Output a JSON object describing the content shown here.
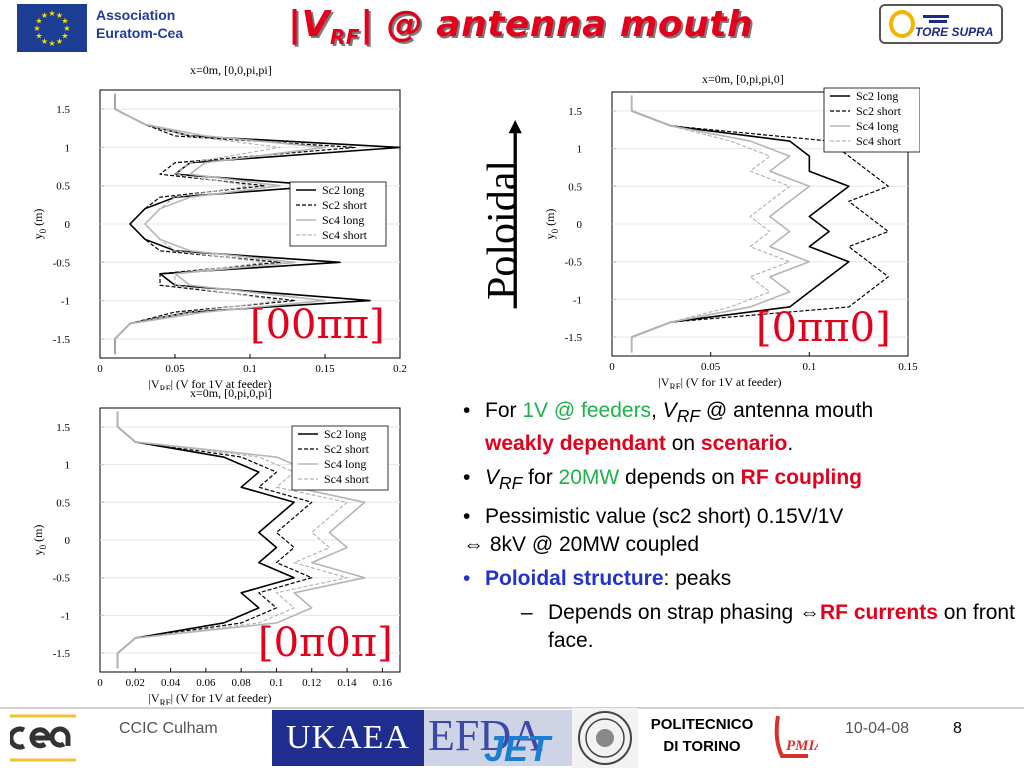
{
  "header": {
    "association_line1": "Association",
    "association_line2": "Euratom-Cea",
    "title_pre": "|V",
    "title_sub": "RF",
    "title_post": "| @ antenna mouth",
    "logo_text": "TORE SUPRA"
  },
  "plots": [
    {
      "id": "plot1",
      "title": "x=0m, [0,0,pi,pi]",
      "phase_label": "[00ππ]",
      "x_ticks": [
        "0",
        "0.05",
        "0.1",
        "0.15",
        "0.2"
      ],
      "y_ticks": [
        "1.5",
        "1",
        "0.5",
        "0",
        "-0.5",
        "-1",
        "-1.5"
      ],
      "xlabel_pre": "|V",
      "xlabel_sub": "RF",
      "xlabel_post": "| (V for 1V at feeder)",
      "ylabel_pre": "y",
      "ylabel_sub": "0",
      "ylabel_post": " (m)",
      "legend": [
        "Sc2 long",
        "Sc2 short",
        "Sc4 long",
        "Sc4 short"
      ]
    },
    {
      "id": "plot2",
      "title": "x=0m, [0,pi,pi,0]",
      "phase_label": "[0ππ0]",
      "x_ticks": [
        "0",
        "0.05",
        "0.1",
        "0.15"
      ],
      "y_ticks": [
        "1.5",
        "1",
        "0.5",
        "0",
        "-0.5",
        "-1",
        "-1.5"
      ],
      "xlabel_pre": "|V",
      "xlabel_sub": "RF",
      "xlabel_post": "| (V for 1V at feeder)",
      "ylabel_pre": "y",
      "ylabel_sub": "0",
      "ylabel_post": " (m)",
      "legend": [
        "Sc2 long",
        "Sc2 short",
        "Sc4 long",
        "Sc4 short"
      ]
    },
    {
      "id": "plot3",
      "title": "x=0m, [0,pi,0,pi]",
      "phase_label": "[0π0π]",
      "x_ticks": [
        "0",
        "0.02",
        "0.04",
        "0.06",
        "0.08",
        "0.1",
        "0.12",
        "0.14",
        "0.16"
      ],
      "y_ticks": [
        "1.5",
        "1",
        "0.5",
        "0",
        "-0.5",
        "-1",
        "-1.5"
      ],
      "xlabel_pre": "|V",
      "xlabel_sub": "RF",
      "xlabel_post": "| (V for 1V at feeder)",
      "ylabel_pre": "y",
      "ylabel_sub": "0",
      "ylabel_post": " (m)",
      "legend": [
        "Sc2 long",
        "Sc2 short",
        "Sc4 long",
        "Sc4 short"
      ]
    }
  ],
  "chart_data": [
    {
      "type": "line",
      "title": "x=0m, [0,0,pi,pi]",
      "xlabel": "|VRF| (V for 1V at feeder)",
      "ylabel": "y0 (m)",
      "xlim": [
        0,
        0.2
      ],
      "ylim": [
        -1.75,
        1.75
      ],
      "legend_position": "right-middle",
      "series": [
        {
          "name": "Sc2 long",
          "y": [
            -1.7,
            -1.5,
            -1.3,
            -1.15,
            -1.0,
            -0.8,
            -0.65,
            -0.5,
            -0.35,
            -0.2,
            0.0,
            0.2,
            0.35,
            0.5,
            0.65,
            0.8,
            1.0,
            1.15,
            1.3,
            1.5,
            1.7
          ],
          "x": [
            0.01,
            0.01,
            0.02,
            0.06,
            0.18,
            0.05,
            0.04,
            0.16,
            0.05,
            0.03,
            0.02,
            0.03,
            0.05,
            0.15,
            0.05,
            0.06,
            0.2,
            0.06,
            0.03,
            0.01,
            0.01
          ]
        },
        {
          "name": "Sc2 short",
          "y": [
            -1.7,
            -1.5,
            -1.3,
            -1.15,
            -1.0,
            -0.8,
            -0.65,
            -0.5,
            -0.35,
            -0.2,
            0.0,
            0.2,
            0.35,
            0.5,
            0.65,
            0.8,
            1.0,
            1.15,
            1.3,
            1.5,
            1.7
          ],
          "x": [
            0.01,
            0.01,
            0.02,
            0.05,
            0.13,
            0.04,
            0.04,
            0.12,
            0.04,
            0.03,
            0.02,
            0.03,
            0.04,
            0.11,
            0.04,
            0.05,
            0.17,
            0.05,
            0.03,
            0.01,
            0.01
          ]
        },
        {
          "name": "Sc4 long",
          "y": [
            -1.7,
            -1.5,
            -1.3,
            -1.15,
            -1.0,
            -0.8,
            -0.65,
            -0.5,
            -0.35,
            -0.2,
            0.0,
            0.2,
            0.35,
            0.5,
            0.65,
            0.8,
            1.0,
            1.15,
            1.3,
            1.5,
            1.7
          ],
          "x": [
            0.01,
            0.01,
            0.02,
            0.07,
            0.15,
            0.06,
            0.05,
            0.13,
            0.06,
            0.04,
            0.03,
            0.04,
            0.06,
            0.12,
            0.06,
            0.07,
            0.15,
            0.07,
            0.03,
            0.01,
            0.01
          ]
        },
        {
          "name": "Sc4 short",
          "y": [
            -1.7,
            -1.5,
            -1.3,
            -1.15,
            -1.0,
            -0.8,
            -0.65,
            -0.5,
            -0.35,
            -0.2,
            0.0,
            0.2,
            0.35,
            0.5,
            0.65,
            0.8,
            1.0,
            1.15,
            1.3,
            1.5,
            1.7
          ],
          "x": [
            0.01,
            0.01,
            0.02,
            0.06,
            0.12,
            0.05,
            0.05,
            0.11,
            0.05,
            0.04,
            0.03,
            0.04,
            0.05,
            0.1,
            0.05,
            0.06,
            0.12,
            0.06,
            0.03,
            0.01,
            0.01
          ]
        }
      ]
    },
    {
      "type": "line",
      "title": "x=0m, [0,pi,pi,0]",
      "xlabel": "|VRF| (V for 1V at feeder)",
      "ylabel": "y0 (m)",
      "xlim": [
        0,
        0.15
      ],
      "ylim": [
        -1.75,
        1.75
      ],
      "legend_position": "top-right",
      "series": [
        {
          "name": "Sc2 long",
          "y": [
            -1.7,
            -1.5,
            -1.3,
            -1.1,
            -0.9,
            -0.7,
            -0.5,
            -0.3,
            -0.1,
            0.1,
            0.3,
            0.5,
            0.7,
            0.9,
            1.1,
            1.3,
            1.5,
            1.7
          ],
          "x": [
            0.01,
            0.01,
            0.03,
            0.09,
            0.1,
            0.11,
            0.12,
            0.1,
            0.11,
            0.1,
            0.11,
            0.12,
            0.1,
            0.1,
            0.09,
            0.03,
            0.01,
            0.01
          ]
        },
        {
          "name": "Sc2 short",
          "y": [
            -1.7,
            -1.5,
            -1.3,
            -1.1,
            -0.9,
            -0.7,
            -0.5,
            -0.3,
            -0.1,
            0.1,
            0.3,
            0.5,
            0.7,
            0.9,
            1.1,
            1.3,
            1.5,
            1.7
          ],
          "x": [
            0.01,
            0.01,
            0.03,
            0.12,
            0.13,
            0.14,
            0.13,
            0.12,
            0.14,
            0.13,
            0.12,
            0.14,
            0.13,
            0.12,
            0.11,
            0.03,
            0.01,
            0.01
          ]
        },
        {
          "name": "Sc4 long",
          "y": [
            -1.7,
            -1.5,
            -1.3,
            -1.1,
            -0.9,
            -0.7,
            -0.5,
            -0.3,
            -0.1,
            0.1,
            0.3,
            0.5,
            0.7,
            0.9,
            1.1,
            1.3,
            1.5,
            1.7
          ],
          "x": [
            0.01,
            0.01,
            0.03,
            0.07,
            0.09,
            0.08,
            0.1,
            0.08,
            0.09,
            0.08,
            0.09,
            0.1,
            0.08,
            0.09,
            0.07,
            0.03,
            0.01,
            0.01
          ]
        },
        {
          "name": "Sc4 short",
          "y": [
            -1.7,
            -1.5,
            -1.3,
            -1.1,
            -0.9,
            -0.7,
            -0.5,
            -0.3,
            -0.1,
            0.1,
            0.3,
            0.5,
            0.7,
            0.9,
            1.1,
            1.3,
            1.5,
            1.7
          ],
          "x": [
            0.01,
            0.01,
            0.03,
            0.06,
            0.08,
            0.07,
            0.09,
            0.07,
            0.08,
            0.07,
            0.08,
            0.09,
            0.07,
            0.08,
            0.06,
            0.03,
            0.01,
            0.01
          ]
        }
      ]
    },
    {
      "type": "line",
      "title": "x=0m, [0,pi,0,pi]",
      "xlabel": "|VRF| (V for 1V at feeder)",
      "ylabel": "y0 (m)",
      "xlim": [
        0,
        0.17
      ],
      "ylim": [
        -1.75,
        1.75
      ],
      "legend_position": "top-right",
      "series": [
        {
          "name": "Sc2 long",
          "y": [
            -1.7,
            -1.5,
            -1.3,
            -1.1,
            -0.9,
            -0.7,
            -0.5,
            -0.3,
            -0.1,
            0.1,
            0.3,
            0.5,
            0.7,
            0.9,
            1.1,
            1.3,
            1.5,
            1.7
          ],
          "x": [
            0.01,
            0.01,
            0.02,
            0.07,
            0.09,
            0.08,
            0.11,
            0.09,
            0.1,
            0.09,
            0.1,
            0.11,
            0.08,
            0.09,
            0.07,
            0.02,
            0.01,
            0.01
          ]
        },
        {
          "name": "Sc2 short",
          "y": [
            -1.7,
            -1.5,
            -1.3,
            -1.1,
            -0.9,
            -0.7,
            -0.5,
            -0.3,
            -0.1,
            0.1,
            0.3,
            0.5,
            0.7,
            0.9,
            1.1,
            1.3,
            1.5,
            1.7
          ],
          "x": [
            0.01,
            0.01,
            0.02,
            0.08,
            0.1,
            0.09,
            0.12,
            0.1,
            0.11,
            0.1,
            0.11,
            0.12,
            0.09,
            0.1,
            0.08,
            0.02,
            0.01,
            0.01
          ]
        },
        {
          "name": "Sc4 long",
          "y": [
            -1.7,
            -1.5,
            -1.3,
            -1.1,
            -0.9,
            -0.7,
            -0.5,
            -0.3,
            -0.1,
            0.1,
            0.3,
            0.5,
            0.7,
            0.9,
            1.1,
            1.3,
            1.5,
            1.7
          ],
          "x": [
            0.01,
            0.01,
            0.02,
            0.1,
            0.12,
            0.11,
            0.15,
            0.12,
            0.14,
            0.13,
            0.14,
            0.15,
            0.11,
            0.12,
            0.1,
            0.02,
            0.01,
            0.01
          ]
        },
        {
          "name": "Sc4 short",
          "y": [
            -1.7,
            -1.5,
            -1.3,
            -1.1,
            -0.9,
            -0.7,
            -0.5,
            -0.3,
            -0.1,
            0.1,
            0.3,
            0.5,
            0.7,
            0.9,
            1.1,
            1.3,
            1.5,
            1.7
          ],
          "x": [
            0.01,
            0.01,
            0.02,
            0.09,
            0.11,
            0.1,
            0.14,
            0.11,
            0.13,
            0.12,
            0.13,
            0.14,
            0.1,
            0.11,
            0.09,
            0.02,
            0.01,
            0.01
          ]
        }
      ]
    }
  ],
  "side_label": "Poloidal",
  "bullets": {
    "b1_pre": "For ",
    "b1_green": "1V @ feeders",
    "b1_comma": ", ",
    "b1_v": "V",
    "b1_sub": "RF",
    "b1_post": " @ antenna mouth",
    "b1_red1": "weakly dependant",
    "b1_on": " on ",
    "b1_red2": "scenario",
    "b1_end": ".",
    "b2_v": "V",
    "b2_sub": "RF",
    "b2_for": " for ",
    "b2_green": "20MW",
    "b2_mid": " depends on ",
    "b2_red": "RF coupling",
    "b3_line1": "Pessimistic value (sc2 short) 0.15V/1V",
    "b3_line2": "⇔ 8kV @ 20MW coupled",
    "b4_blue": "Poloidal structure",
    "b4_post": ": peaks",
    "s1_pre": "Depends on strap phasing ⇔",
    "s1_red": "RF currents",
    "s1_post": " on front face."
  },
  "footer": {
    "conference": "CCIC Culham",
    "ukaea": "UKAEA",
    "efda": "EFDA",
    "jet": "JET",
    "poli_line1": "POLITECNICO",
    "poli_line2": "DI TORINO",
    "date": "10-04-08",
    "page": "8"
  },
  "colors": {
    "title_red": "#e4001b",
    "association_blue": "#1f3b9c",
    "accent_green": "#1db24a",
    "accent_blue": "#2233cc",
    "ukaea_bg": "#1e2d8e"
  }
}
